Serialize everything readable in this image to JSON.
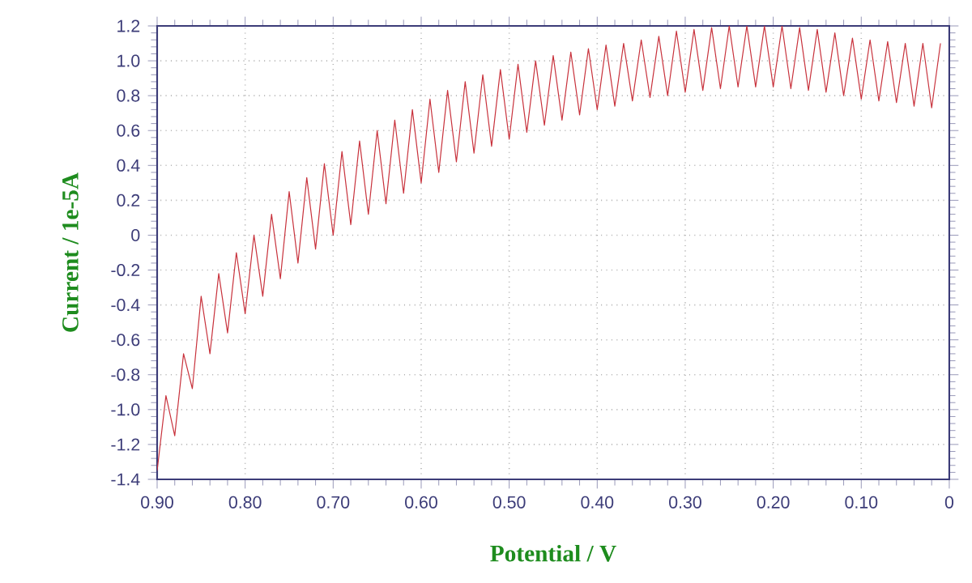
{
  "chart_data": {
    "type": "line",
    "xlabel": "Potential / V",
    "ylabel": "Current / 1e-5A",
    "x": [
      0.9,
      0.89,
      0.88,
      0.87,
      0.86,
      0.85,
      0.84,
      0.83,
      0.82,
      0.81,
      0.8,
      0.79,
      0.78,
      0.77,
      0.76,
      0.75,
      0.74,
      0.73,
      0.72,
      0.71,
      0.7,
      0.69,
      0.68,
      0.67,
      0.66,
      0.65,
      0.64,
      0.63,
      0.62,
      0.61,
      0.6,
      0.59,
      0.58,
      0.57,
      0.56,
      0.55,
      0.54,
      0.53,
      0.52,
      0.51,
      0.5,
      0.49,
      0.48,
      0.47,
      0.46,
      0.45,
      0.44,
      0.43,
      0.42,
      0.41,
      0.4,
      0.39,
      0.38,
      0.37,
      0.36,
      0.35,
      0.34,
      0.33,
      0.32,
      0.31,
      0.3,
      0.29,
      0.28,
      0.27,
      0.26,
      0.25,
      0.24,
      0.23,
      0.22,
      0.21,
      0.2,
      0.19,
      0.18,
      0.17,
      0.16,
      0.15,
      0.14,
      0.13,
      0.12,
      0.11,
      0.1,
      0.09,
      0.08,
      0.07,
      0.06,
      0.05,
      0.04,
      0.03,
      0.02,
      0.01
    ],
    "values": [
      -1.35,
      -0.92,
      -1.15,
      -0.68,
      -0.88,
      -0.35,
      -0.68,
      -0.22,
      -0.56,
      -0.1,
      -0.45,
      0.0,
      -0.35,
      0.12,
      -0.25,
      0.25,
      -0.16,
      0.33,
      -0.08,
      0.41,
      0.0,
      0.48,
      0.06,
      0.54,
      0.12,
      0.6,
      0.18,
      0.66,
      0.24,
      0.72,
      0.3,
      0.78,
      0.36,
      0.83,
      0.42,
      0.88,
      0.47,
      0.92,
      0.51,
      0.95,
      0.55,
      0.98,
      0.59,
      1.0,
      0.63,
      1.03,
      0.66,
      1.05,
      0.69,
      1.07,
      0.72,
      1.09,
      0.74,
      1.1,
      0.77,
      1.12,
      0.79,
      1.14,
      0.8,
      1.17,
      0.82,
      1.18,
      0.83,
      1.19,
      0.84,
      1.2,
      0.85,
      1.2,
      0.85,
      1.2,
      0.85,
      1.2,
      0.84,
      1.19,
      0.83,
      1.18,
      0.82,
      1.16,
      0.8,
      1.13,
      0.78,
      1.12,
      0.77,
      1.11,
      0.76,
      1.1,
      0.74,
      1.1,
      0.73,
      1.1
    ],
    "color": "#c8323c",
    "line_style": "solid",
    "marker": "none",
    "grid": true,
    "xlim": [
      0.9,
      0
    ],
    "ylim": [
      -1.4,
      1.2
    ],
    "xticks": [
      {
        "value": 0.9,
        "label": "0.90"
      },
      {
        "value": 0.8,
        "label": "0.80"
      },
      {
        "value": 0.7,
        "label": "0.70"
      },
      {
        "value": 0.6,
        "label": "0.60"
      },
      {
        "value": 0.5,
        "label": "0.50"
      },
      {
        "value": 0.4,
        "label": "0.40"
      },
      {
        "value": 0.3,
        "label": "0.30"
      },
      {
        "value": 0.2,
        "label": "0.20"
      },
      {
        "value": 0.1,
        "label": "0.10"
      },
      {
        "value": 0,
        "label": "0"
      }
    ],
    "yticks": [
      {
        "value": -1.4,
        "label": "-1.4"
      },
      {
        "value": -1.2,
        "label": "-1.2"
      },
      {
        "value": -1.0,
        "label": "-1.0"
      },
      {
        "value": -0.8,
        "label": "-0.8"
      },
      {
        "value": -0.6,
        "label": "-0.6"
      },
      {
        "value": -0.4,
        "label": "-0.4"
      },
      {
        "value": -0.2,
        "label": "-0.2"
      },
      {
        "value": 0,
        "label": "0"
      },
      {
        "value": 0.2,
        "label": "0.2"
      },
      {
        "value": 0.4,
        "label": "0.4"
      },
      {
        "value": 0.6,
        "label": "0.6"
      },
      {
        "value": 0.8,
        "label": "0.8"
      },
      {
        "value": 1.0,
        "label": "1.0"
      },
      {
        "value": 1.2,
        "label": "1.2"
      }
    ]
  }
}
